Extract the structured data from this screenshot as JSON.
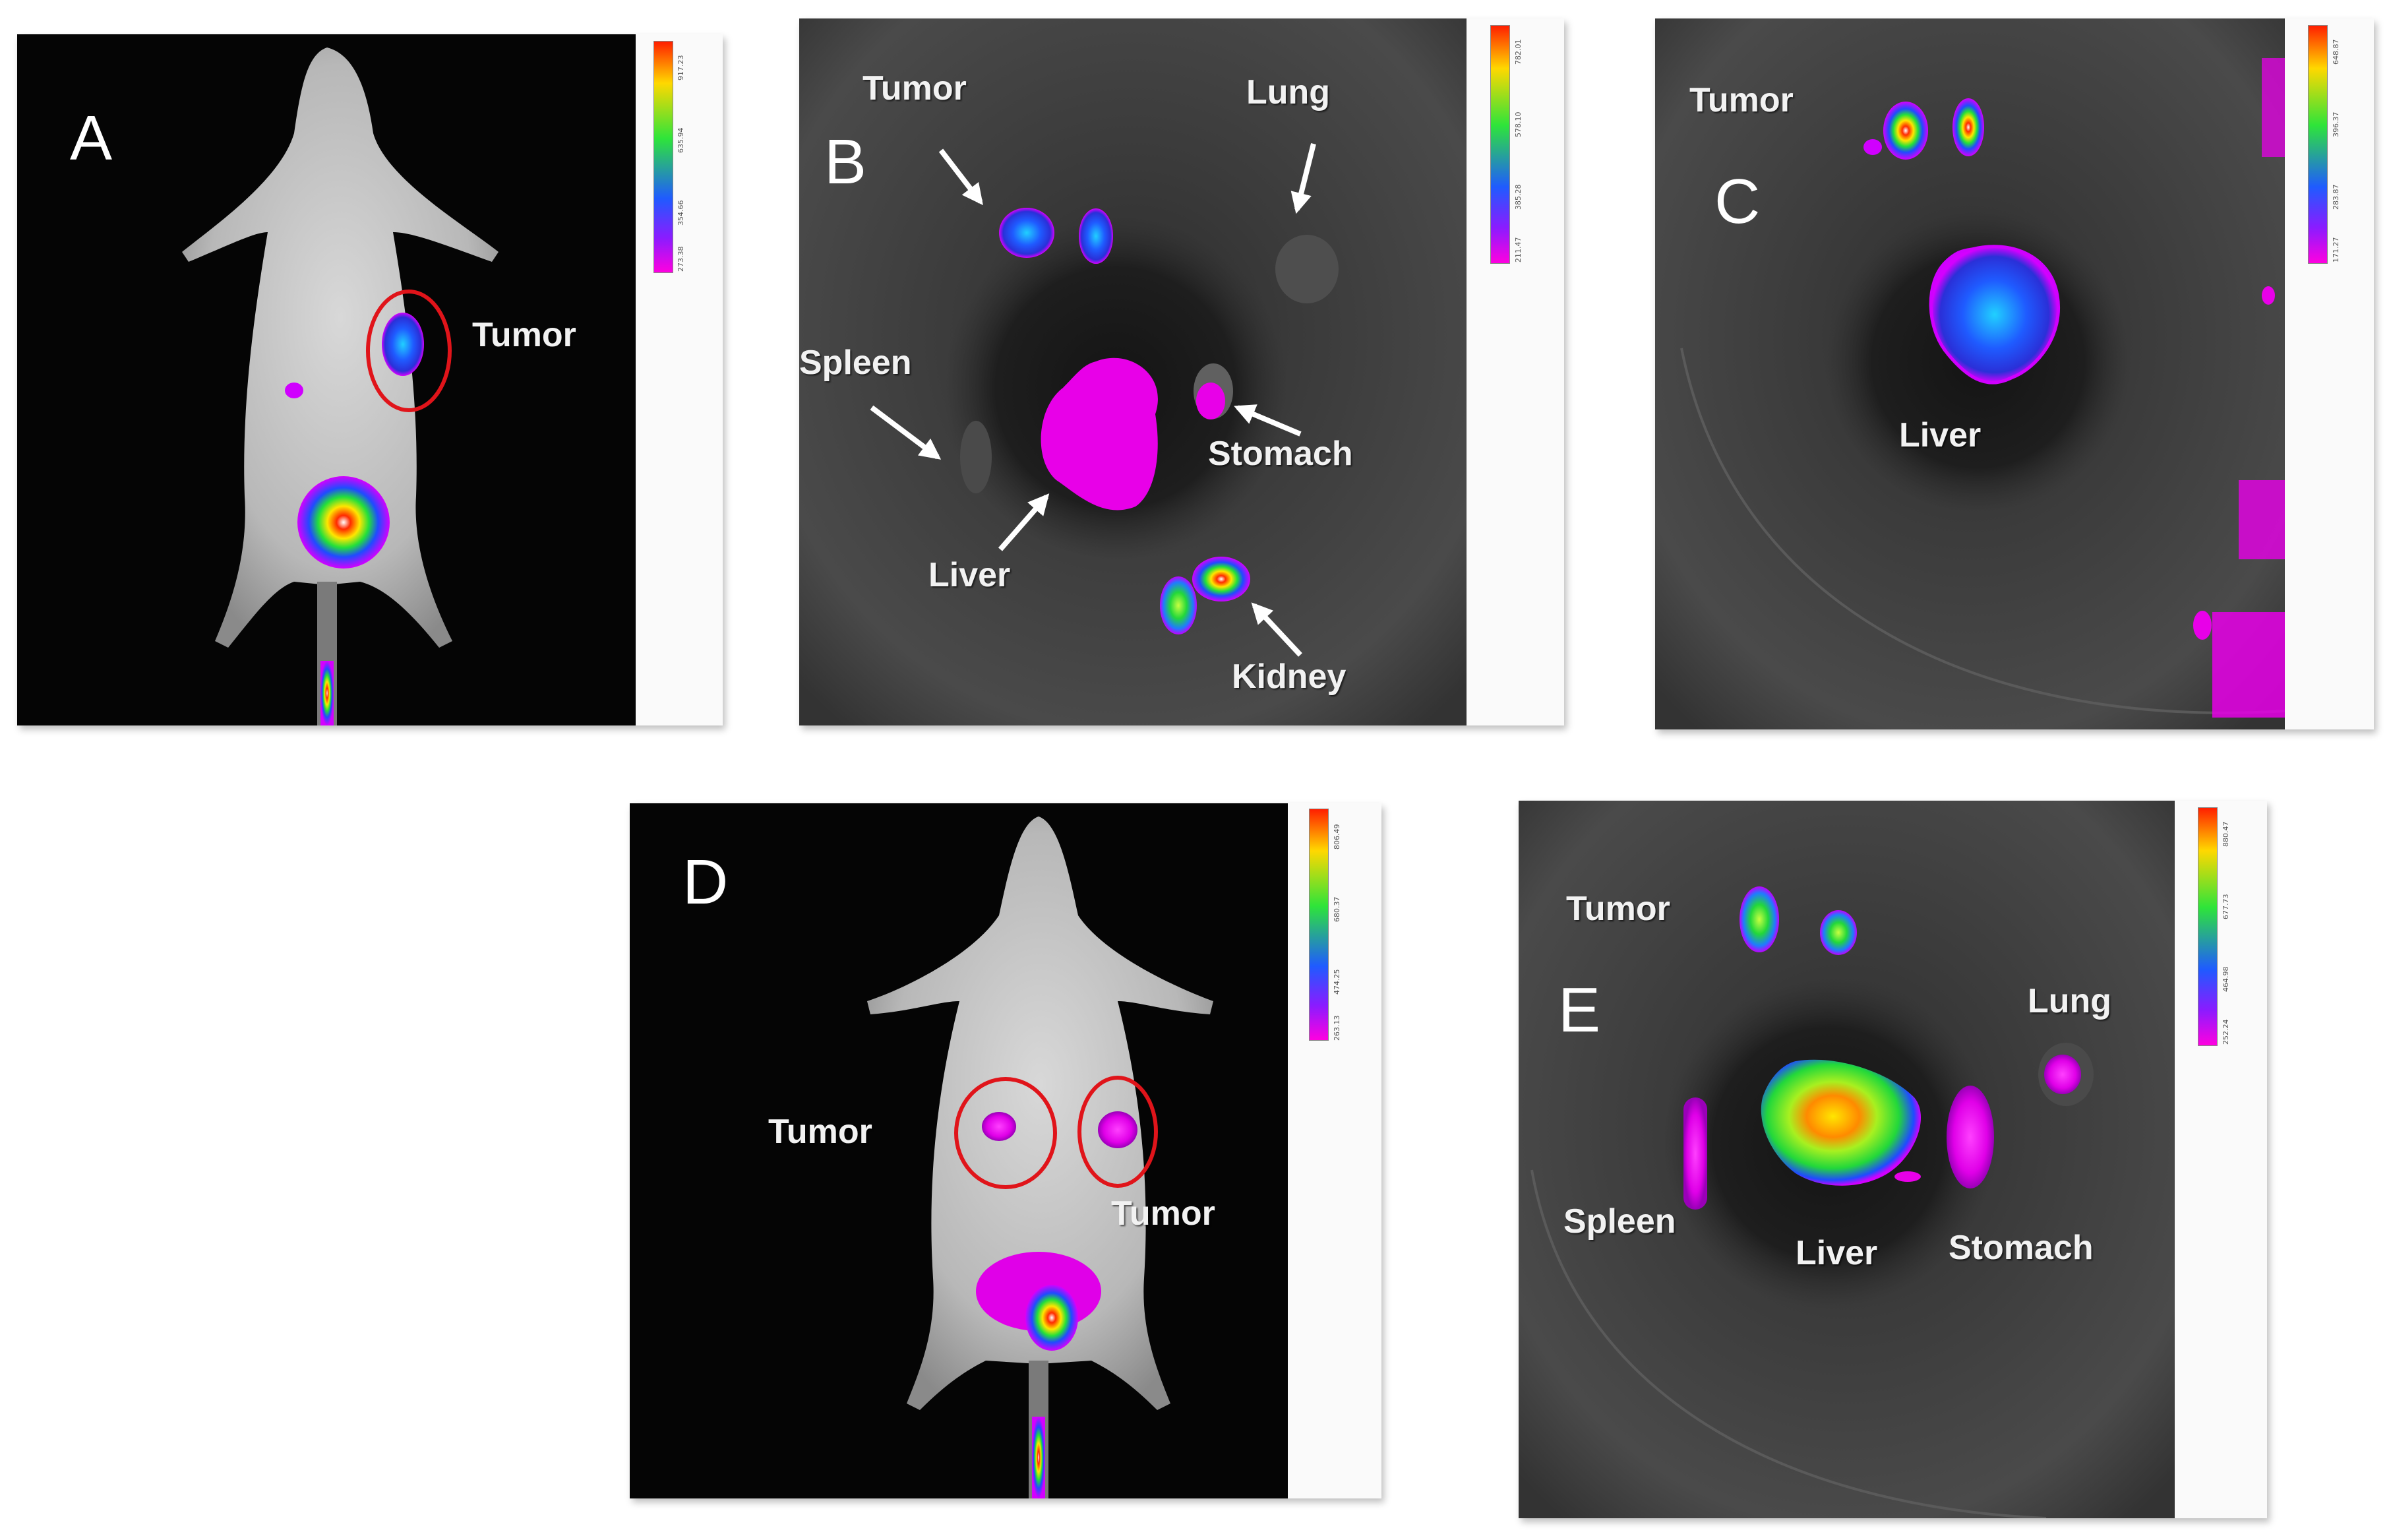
{
  "panels": {
    "a": {
      "letter": "A",
      "labels": {
        "tumor": "Tumor"
      },
      "scale": [
        "917.23",
        "635.94",
        "354.66",
        "273.38"
      ]
    },
    "b": {
      "letter": "B",
      "labels": {
        "tumor": "Tumor",
        "lung": "Lung",
        "spleen": "Spleen",
        "stomach": "Stomach",
        "liver": "Liver",
        "kidney": "Kidney"
      },
      "scale": [
        "782.01",
        "578.10",
        "385.28",
        "211.47"
      ]
    },
    "c": {
      "letter": "C",
      "labels": {
        "tumor": "Tumor",
        "liver": "Liver"
      },
      "scale": [
        "648.87",
        "396.37",
        "283.87",
        "171.27"
      ]
    },
    "d": {
      "letter": "D",
      "labels": {
        "tumor_left": "Tumor",
        "tumor_right": "Tumor"
      },
      "scale": [
        "806.49",
        "680.37",
        "474.25",
        "263.13"
      ]
    },
    "e": {
      "letter": "E",
      "labels": {
        "tumor": "Tumor",
        "lung": "Lung",
        "spleen": "Spleen",
        "liver": "Liver",
        "stomach": "Stomach"
      },
      "scale": [
        "880.47",
        "677.73",
        "464.98",
        "252.24"
      ]
    }
  },
  "colors": {
    "scale_top": "#ff2a00",
    "scale_mid": "#22e03a",
    "scale_low": "#1f4bff",
    "scale_bottom": "#e800e8",
    "circle": "#e0141a"
  }
}
